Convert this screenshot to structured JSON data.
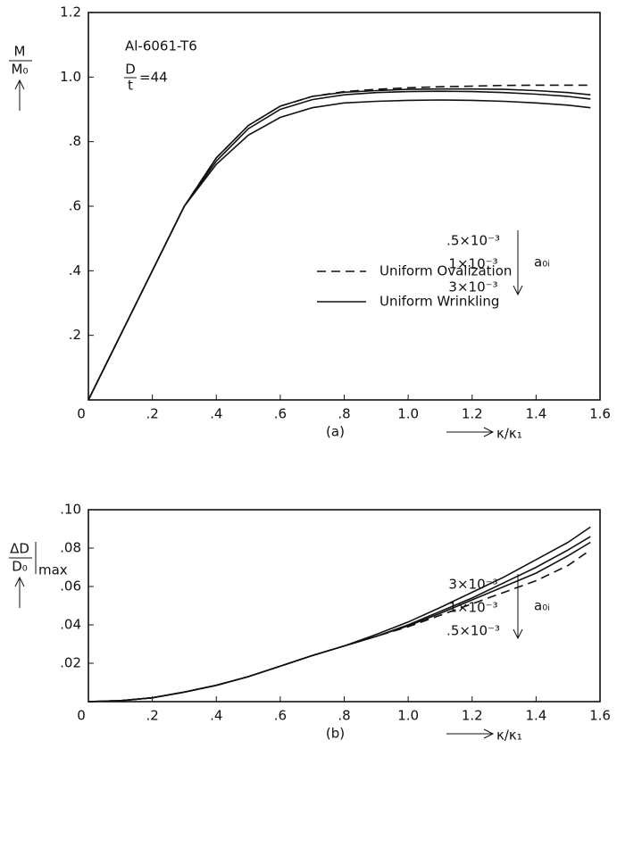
{
  "chart_data": [
    {
      "type": "line",
      "subtitle": "(a)",
      "y_label": {
        "numerator": "M",
        "denominator": "M₀"
      },
      "x_label": "κ/κ₁",
      "material": "Al-6061-T6",
      "ratio": {
        "numerator": "D",
        "denominator": "t",
        "value": "=44"
      },
      "amplitude_symbol": "a₀ᵢ",
      "amplitude_labels": [
        ".5×10⁻³",
        "1×10⁻³",
        "3×10⁻³"
      ],
      "x": [
        0,
        0.1,
        0.2,
        0.3,
        0.4,
        0.5,
        0.6,
        0.7,
        0.8,
        0.9,
        1.0,
        1.1,
        1.2,
        1.3,
        1.4,
        1.5,
        1.57
      ],
      "series": [
        {
          "name": "Uniform Ovalization",
          "color": "#111",
          "dashed": true,
          "values": [
            0,
            0.2,
            0.4,
            0.6,
            0.75,
            0.85,
            0.91,
            0.94,
            0.955,
            0.962,
            0.967,
            0.97,
            0.972,
            0.974,
            0.975,
            0.975,
            0.975
          ]
        },
        {
          "name": "Uniform Wrinkling",
          "color": "#111",
          "values": [
            0,
            0.2,
            0.4,
            0.6,
            0.75,
            0.85,
            0.91,
            0.94,
            0.953,
            0.958,
            0.962,
            0.963,
            0.963,
            0.962,
            0.958,
            0.952,
            0.945
          ]
        },
        {
          "color": "#111",
          "values": [
            0,
            0.2,
            0.4,
            0.6,
            0.74,
            0.84,
            0.9,
            0.93,
            0.945,
            0.952,
            0.955,
            0.956,
            0.955,
            0.952,
            0.947,
            0.94,
            0.932
          ]
        },
        {
          "color": "#111",
          "values": [
            0,
            0.2,
            0.4,
            0.6,
            0.73,
            0.82,
            0.875,
            0.905,
            0.92,
            0.925,
            0.928,
            0.929,
            0.928,
            0.925,
            0.92,
            0.913,
            0.905
          ]
        }
      ],
      "xlim": [
        0,
        1.6
      ],
      "ylim": [
        0,
        1.2
      ],
      "xticks": [
        0,
        {
          "value": 0.2,
          "label": ".2"
        },
        {
          "value": 0.4,
          "label": ".4"
        },
        {
          "value": 0.6,
          "label": ".6"
        },
        {
          "value": 0.8,
          "label": ".8"
        },
        {
          "value": 1.0,
          "label": "1.0"
        },
        1.2,
        1.4,
        1.6
      ],
      "yticks": [
        {
          "value": 0.2,
          "label": ".2"
        },
        {
          "value": 0.4,
          "label": ".4"
        },
        {
          "value": 0.6,
          "label": ".6"
        },
        {
          "value": 0.8,
          "label": ".8"
        },
        {
          "value": 1.0,
          "label": "1.0"
        },
        1.2
      ]
    },
    {
      "type": "line",
      "subtitle": "(b)",
      "y_label": {
        "numerator": "ΔD",
        "denominator": "D₀",
        "suffix": "max"
      },
      "x_label": "κ/κ₁",
      "amplitude_symbol": "a₀ᵢ",
      "amplitude_labels": [
        "3×10⁻³",
        "1×10⁻³",
        ".5×10⁻³"
      ],
      "x": [
        0,
        0.1,
        0.2,
        0.3,
        0.4,
        0.5,
        0.6,
        0.7,
        0.8,
        0.9,
        1.0,
        1.1,
        1.2,
        1.3,
        1.4,
        1.5,
        1.57
      ],
      "series": [
        {
          "color": "#111",
          "dashed": true,
          "values": [
            0,
            0.0005,
            0.002,
            0.005,
            0.0085,
            0.013,
            0.0185,
            0.024,
            0.029,
            0.034,
            0.039,
            0.045,
            0.051,
            0.057,
            0.063,
            0.071,
            0.079
          ]
        },
        {
          "color": "#111",
          "values": [
            0,
            0.0005,
            0.002,
            0.005,
            0.0085,
            0.013,
            0.0185,
            0.024,
            0.029,
            0.034,
            0.0395,
            0.046,
            0.053,
            0.06,
            0.067,
            0.076,
            0.083
          ]
        },
        {
          "color": "#111",
          "values": [
            0,
            0.0005,
            0.002,
            0.005,
            0.0085,
            0.013,
            0.0185,
            0.024,
            0.029,
            0.034,
            0.04,
            0.047,
            0.054,
            0.062,
            0.07,
            0.079,
            0.086
          ]
        },
        {
          "color": "#111",
          "values": [
            0,
            0.0005,
            0.002,
            0.005,
            0.0085,
            0.013,
            0.0185,
            0.024,
            0.029,
            0.035,
            0.0415,
            0.049,
            0.057,
            0.065,
            0.074,
            0.083,
            0.091
          ]
        }
      ],
      "xlim": [
        0,
        1.6
      ],
      "ylim": [
        0,
        0.1
      ],
      "xticks": [
        0,
        {
          "value": 0.2,
          "label": ".2"
        },
        {
          "value": 0.4,
          "label": ".4"
        },
        {
          "value": 0.6,
          "label": ".6"
        },
        {
          "value": 0.8,
          "label": ".8"
        },
        {
          "value": 1.0,
          "label": "1.0"
        },
        1.2,
        1.4,
        1.6
      ],
      "yticks": [
        {
          "value": 0.02,
          "label": ".02"
        },
        {
          "value": 0.04,
          "label": ".04"
        },
        {
          "value": 0.06,
          "label": ".06"
        },
        {
          "value": 0.08,
          "label": ".08"
        },
        {
          "value": 0.1,
          "label": ".10"
        }
      ]
    }
  ]
}
